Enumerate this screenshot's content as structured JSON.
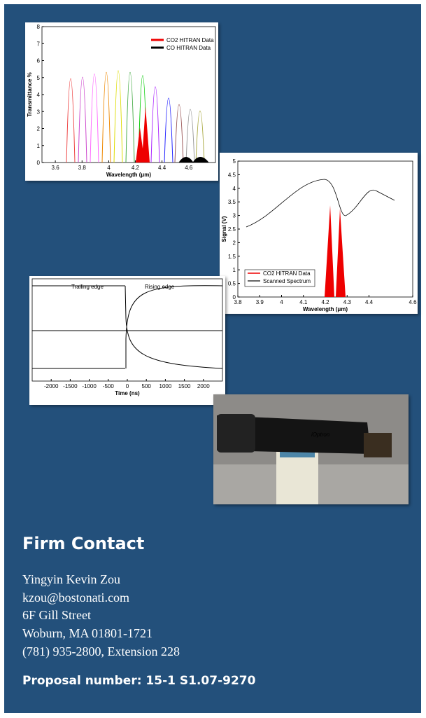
{
  "figures": [
    {
      "y_label": "Transmittance %",
      "x_label": "Wavelength (μm)",
      "y_ticks": [
        "0",
        "1",
        "2",
        "3",
        "4",
        "5",
        "6",
        "7",
        "8"
      ],
      "x_ticks": [
        "3.6",
        "3.8",
        "4",
        "4.2",
        "4.4",
        "4.6"
      ],
      "legend": [
        "CO2 HITRAN Data",
        "CO HITRAN Data"
      ]
    },
    {
      "y_label": "Signal (V)",
      "x_label": "Wavelength (μm)",
      "y_ticks": [
        "0",
        "0.5",
        "1",
        "1.5",
        "2",
        "2.5",
        "3",
        "3.5",
        "4",
        "4.5",
        "5"
      ],
      "x_ticks": [
        "3.8",
        "3.9",
        "4",
        "4.1",
        "4.2",
        "4.3",
        "4.4",
        "4.6"
      ],
      "legend": [
        "CO2 HITRAN Data",
        "Scanned Spectrum"
      ]
    },
    {
      "x_label": "Time (ns)",
      "x_ticks": [
        "-2000",
        "-1500",
        "-1000",
        "-500",
        "0",
        "500",
        "1000",
        "1500",
        "2000"
      ],
      "annotations": [
        "Trailing edge",
        "Rising edge"
      ]
    }
  ],
  "photo": {
    "label": "iOptron"
  },
  "contact": {
    "heading": "Firm Contact",
    "lines": [
      "Yingyin Kevin Zou",
      "kzou@bostonati.com",
      "6F Gill Street",
      "Woburn, MA 01801-1721",
      "(781) 935-2800, Extension 228"
    ]
  },
  "proposal": "Proposal number:  15-1 S1.07-9270"
}
